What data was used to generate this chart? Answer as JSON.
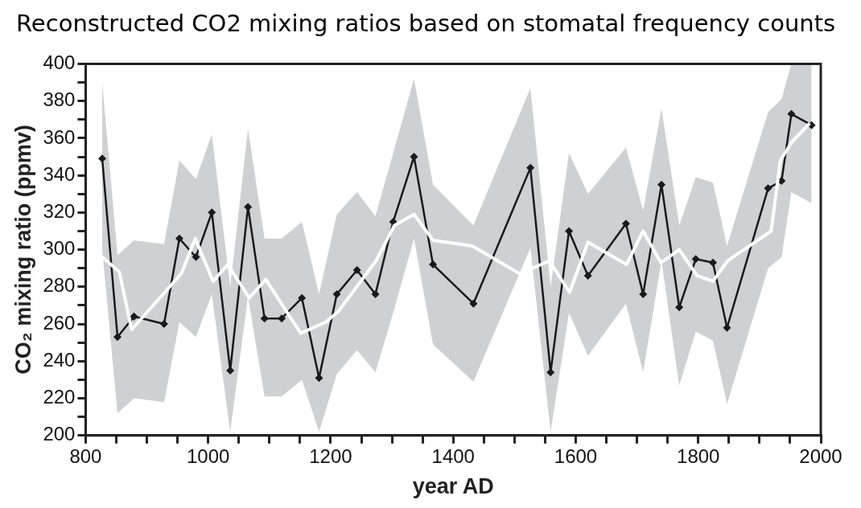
{
  "chart_data": {
    "type": "line",
    "title": "Reconstructed CO2 mixing ratios based on stomatal frequency counts",
    "xlabel": "year AD",
    "ylabel": "CO₂ mixing ratio (ppmv)",
    "xlim": [
      800,
      2000
    ],
    "xticks": [
      800,
      {
        "value": 850,
        "label": null
      },
      {
        "value": 900,
        "label": null
      },
      {
        "value": 950,
        "label": null
      },
      1000,
      {
        "value": 1050,
        "label": null
      },
      {
        "value": 1100,
        "label": null
      },
      {
        "value": 1150,
        "label": null
      },
      1200,
      {
        "value": 1250,
        "label": null
      },
      {
        "value": 1300,
        "label": null
      },
      {
        "value": 1350,
        "label": null
      },
      1400,
      {
        "value": 1450,
        "label": null
      },
      {
        "value": 1500,
        "label": null
      },
      {
        "value": 1550,
        "label": null
      },
      1600,
      {
        "value": 1650,
        "label": null
      },
      {
        "value": 1700,
        "label": null
      },
      {
        "value": 1750,
        "label": null
      },
      1800,
      {
        "value": 1850,
        "label": null
      },
      {
        "value": 1900,
        "label": null
      },
      {
        "value": 1950,
        "label": null
      },
      2000
    ],
    "ylim": [
      200,
      400
    ],
    "yticks": [
      200,
      {
        "value": 210,
        "label": null
      },
      220,
      {
        "value": 230,
        "label": null
      },
      240,
      {
        "value": 250,
        "label": null
      },
      260,
      {
        "value": 270,
        "label": null
      },
      280,
      {
        "value": 290,
        "label": null
      },
      300,
      {
        "value": 310,
        "label": null
      },
      320,
      {
        "value": 330,
        "label": null
      },
      340,
      {
        "value": 350,
        "label": null
      },
      360,
      {
        "value": 370,
        "label": null
      },
      380,
      {
        "value": 390,
        "label": null
      },
      400
    ],
    "grid": false,
    "legend": false,
    "series": [
      {
        "type": "line",
        "color": "#1a1a1a",
        "marker": "diamond",
        "x": [
          827,
          852,
          879,
          928,
          953,
          980,
          1006,
          1036,
          1065,
          1092,
          1120,
          1153,
          1181,
          1210,
          1243,
          1273,
          1302,
          1336,
          1367,
          1433,
          1526,
          1559,
          1589,
          1620,
          1682,
          1710,
          1740,
          1769,
          1796,
          1824,
          1847,
          1914,
          1936,
          1952,
          1985
        ],
        "values": [
          349,
          253,
          264,
          260,
          306,
          296,
          320,
          235,
          323,
          263,
          263,
          274,
          231,
          276,
          289,
          276,
          315,
          350,
          292,
          271,
          344,
          234,
          310,
          286,
          314,
          276,
          335,
          269,
          295,
          293,
          258,
          333,
          337,
          373,
          367
        ],
        "lower": [
          300,
          212,
          220,
          218,
          261,
          253,
          276,
          202,
          275,
          221,
          221,
          230,
          202,
          233,
          246,
          234,
          266,
          306,
          249,
          229,
          301,
          202,
          266,
          243,
          271,
          234,
          294,
          227,
          256,
          251,
          217,
          290,
          296,
          331,
          325
        ],
        "upper": [
          390,
          297,
          305,
          303,
          348,
          338,
          362,
          280,
          365,
          306,
          306,
          315,
          276,
          319,
          331,
          318,
          352,
          392,
          335,
          313,
          387,
          280,
          352,
          330,
          355,
          321,
          376,
          313,
          339,
          336,
          302,
          374,
          381,
          400,
          400
        ]
      },
      {
        "type": "line",
        "color": "#ffffff",
        "marker": "none",
        "x": [
          827,
          855,
          875,
          956,
          979,
          1008,
          1032,
          1067,
          1094,
          1151,
          1192,
          1213,
          1274,
          1304,
          1336,
          1367,
          1431,
          1509,
          1557,
          1590,
          1620,
          1683,
          1710,
          1739,
          1769,
          1798,
          1824,
          1848,
          1919,
          1934,
          1953,
          1982
        ],
        "values": [
          296,
          288,
          257,
          287,
          306,
          283,
          292,
          274,
          284,
          255,
          261,
          267,
          294,
          313,
          319,
          305,
          302,
          287,
          294,
          277,
          304,
          292,
          310,
          293,
          300,
          286,
          283,
          294,
          310,
          348,
          358,
          368
        ]
      }
    ]
  }
}
